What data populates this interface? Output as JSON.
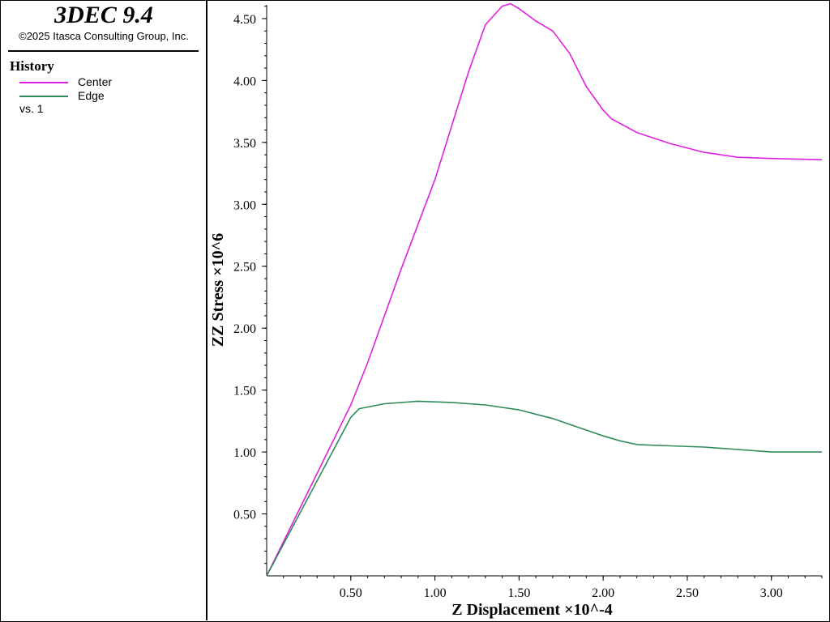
{
  "app": {
    "title": "3DEC 9.4",
    "copyright": "©2025 Itasca Consulting Group, Inc."
  },
  "legend": {
    "title": "History",
    "items": [
      {
        "label": "Center",
        "color": "#e020e0"
      },
      {
        "label": "Edge",
        "color": "#2e8b57"
      }
    ],
    "vs_label": "vs. 1"
  },
  "chart_data": {
    "type": "line",
    "xlabel": "Z Displacement ×10^-4",
    "ylabel": "ZZ Stress ×10^6",
    "xlim": [
      0,
      3.3
    ],
    "ylim": [
      0,
      4.65
    ],
    "x_ticks": [
      0.5,
      1.0,
      1.5,
      2.0,
      2.5,
      3.0
    ],
    "x_tick_labels": [
      "0.50",
      "1.00",
      "1.50",
      "2.00",
      "2.50",
      "3.00"
    ],
    "y_ticks": [
      0.5,
      1.0,
      1.5,
      2.0,
      2.5,
      3.0,
      3.5,
      4.0,
      4.5
    ],
    "y_tick_labels": [
      "0.50",
      "1.00",
      "1.50",
      "2.00",
      "2.50",
      "3.00",
      "3.50",
      "4.00",
      "4.50"
    ],
    "grid": false,
    "series": [
      {
        "name": "Center",
        "color": "#e020e0",
        "x": [
          0,
          0.25,
          0.5,
          0.6,
          0.8,
          1.0,
          1.2,
          1.3,
          1.4,
          1.45,
          1.5,
          1.6,
          1.7,
          1.8,
          1.9,
          2.0,
          2.05,
          2.2,
          2.4,
          2.6,
          2.8,
          3.0,
          3.3
        ],
        "values": [
          0,
          0.69,
          1.38,
          1.72,
          2.48,
          3.2,
          4.07,
          4.45,
          4.6,
          4.62,
          4.58,
          4.48,
          4.4,
          4.22,
          3.95,
          3.76,
          3.69,
          3.58,
          3.49,
          3.42,
          3.38,
          3.37,
          3.36
        ]
      },
      {
        "name": "Edge",
        "color": "#2e8b57",
        "x": [
          0,
          0.25,
          0.5,
          0.55,
          0.7,
          0.9,
          1.1,
          1.3,
          1.5,
          1.7,
          1.85,
          2.0,
          2.1,
          2.2,
          2.4,
          2.6,
          2.8,
          3.0,
          3.3
        ],
        "values": [
          0,
          0.64,
          1.28,
          1.35,
          1.39,
          1.41,
          1.4,
          1.38,
          1.34,
          1.27,
          1.2,
          1.13,
          1.09,
          1.06,
          1.05,
          1.04,
          1.02,
          1.0,
          1.0
        ]
      }
    ]
  }
}
